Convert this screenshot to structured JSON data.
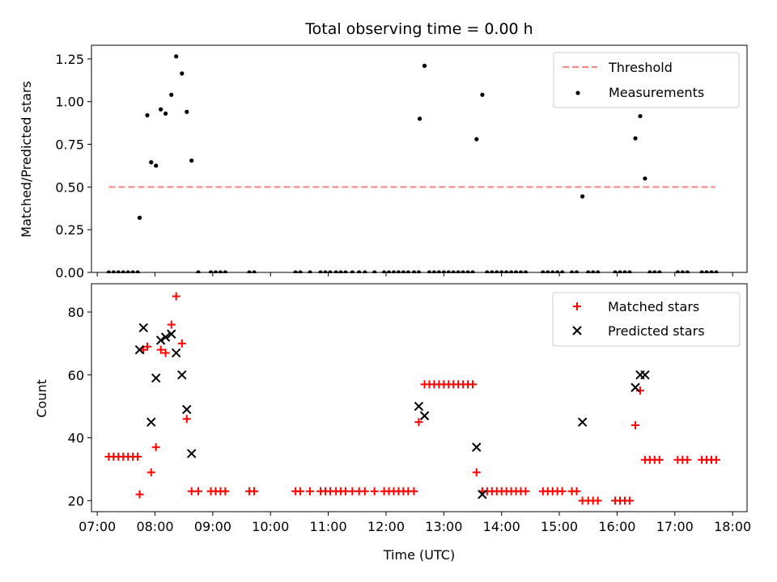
{
  "chart_data": [
    {
      "type": "scatter",
      "title": "Total observing time = 0.00 h",
      "xlabel": "",
      "ylabel": "Matched/Predicted stars",
      "xlim": [
        "06:54",
        "18:15"
      ],
      "ylim": [
        0,
        1.33
      ],
      "yticks": [
        "0.00",
        "0.25",
        "0.50",
        "0.75",
        "1.00",
        "1.25"
      ],
      "legend_position": "top-right",
      "threshold": {
        "name": "Threshold",
        "value": 0.5,
        "x_range": [
          "07:12",
          "17:42"
        ],
        "color": "#ff7f7f",
        "style": "dashed"
      },
      "series": [
        {
          "name": "Measurements",
          "color": "#000000",
          "marker": "dot",
          "points": [
            [
              "07:12",
              0
            ],
            [
              "07:17",
              0
            ],
            [
              "07:22",
              0
            ],
            [
              "07:27",
              0
            ],
            [
              "07:32",
              0
            ],
            [
              "07:37",
              0
            ],
            [
              "07:42",
              0
            ],
            [
              "07:44",
              0.32
            ],
            [
              "07:52",
              0.92
            ],
            [
              "07:56",
              0.645
            ],
            [
              "08:01",
              0.625
            ],
            [
              "08:06",
              0.955
            ],
            [
              "08:11",
              0.93
            ],
            [
              "08:17",
              1.04
            ],
            [
              "08:22",
              1.265
            ],
            [
              "08:28",
              1.165
            ],
            [
              "08:33",
              0.94
            ],
            [
              "08:38",
              0.655
            ],
            [
              "08:45",
              0
            ],
            [
              "08:58",
              0
            ],
            [
              "09:03",
              0
            ],
            [
              "09:08",
              0
            ],
            [
              "09:13",
              0
            ],
            [
              "09:38",
              0
            ],
            [
              "09:43",
              0
            ],
            [
              "10:26",
              0
            ],
            [
              "10:31",
              0
            ],
            [
              "10:41",
              0
            ],
            [
              "10:52",
              0
            ],
            [
              "10:57",
              0
            ],
            [
              "11:02",
              0
            ],
            [
              "11:08",
              0
            ],
            [
              "11:13",
              0
            ],
            [
              "11:18",
              0
            ],
            [
              "11:25",
              0
            ],
            [
              "11:32",
              0
            ],
            [
              "11:38",
              0
            ],
            [
              "11:48",
              0
            ],
            [
              "11:58",
              0
            ],
            [
              "12:03",
              0
            ],
            [
              "12:08",
              0
            ],
            [
              "12:13",
              0
            ],
            [
              "12:18",
              0
            ],
            [
              "12:23",
              0
            ],
            [
              "12:29",
              0
            ],
            [
              "12:34",
              0
            ],
            [
              "12:35",
              0.9
            ],
            [
              "12:40",
              1.21
            ],
            [
              "12:45",
              0
            ],
            [
              "12:50",
              0
            ],
            [
              "12:55",
              0
            ],
            [
              "13:00",
              0
            ],
            [
              "13:05",
              0
            ],
            [
              "13:10",
              0
            ],
            [
              "13:15",
              0
            ],
            [
              "13:20",
              0
            ],
            [
              "13:25",
              0
            ],
            [
              "13:30",
              0
            ],
            [
              "13:34",
              0.78
            ],
            [
              "13:40",
              1.04
            ],
            [
              "13:45",
              0
            ],
            [
              "13:50",
              0
            ],
            [
              "13:55",
              0
            ],
            [
              "14:00",
              0
            ],
            [
              "14:05",
              0
            ],
            [
              "14:10",
              0
            ],
            [
              "14:15",
              0
            ],
            [
              "14:20",
              0
            ],
            [
              "14:25",
              0
            ],
            [
              "14:43",
              0
            ],
            [
              "14:48",
              0
            ],
            [
              "14:53",
              0
            ],
            [
              "14:58",
              0
            ],
            [
              "15:03",
              0
            ],
            [
              "15:13",
              0
            ],
            [
              "15:18",
              0
            ],
            [
              "15:24",
              0.445
            ],
            [
              "15:30",
              0
            ],
            [
              "15:35",
              0
            ],
            [
              "15:40",
              0
            ],
            [
              "15:58",
              0
            ],
            [
              "16:03",
              0
            ],
            [
              "16:08",
              0
            ],
            [
              "16:13",
              0
            ],
            [
              "16:19",
              0.785
            ],
            [
              "16:24",
              0.915
            ],
            [
              "16:29",
              0.55
            ],
            [
              "16:34",
              0
            ],
            [
              "16:39",
              0
            ],
            [
              "16:44",
              0
            ],
            [
              "17:03",
              0
            ],
            [
              "17:08",
              0
            ],
            [
              "17:13",
              0
            ],
            [
              "17:28",
              0
            ],
            [
              "17:33",
              0
            ],
            [
              "17:38",
              0
            ],
            [
              "17:43",
              0
            ]
          ]
        }
      ]
    },
    {
      "type": "scatter",
      "title": "",
      "xlabel": "Time (UTC)",
      "ylabel": "Count",
      "xlim": [
        "06:54",
        "18:15"
      ],
      "ylim": [
        16.5,
        89
      ],
      "yticks": [
        "20",
        "40",
        "60",
        "80"
      ],
      "xticks": [
        "07:00",
        "08:00",
        "09:00",
        "10:00",
        "11:00",
        "12:00",
        "13:00",
        "14:00",
        "15:00",
        "16:00",
        "17:00",
        "18:00"
      ],
      "legend_position": "top-right",
      "series": [
        {
          "name": "Matched stars",
          "color": "#ff0000",
          "marker": "plus",
          "points": [
            [
              "07:12",
              34
            ],
            [
              "07:17",
              34
            ],
            [
              "07:22",
              34
            ],
            [
              "07:27",
              34
            ],
            [
              "07:32",
              34
            ],
            [
              "07:37",
              34
            ],
            [
              "07:42",
              34
            ],
            [
              "07:44",
              22
            ],
            [
              "07:48",
              68
            ],
            [
              "07:52",
              69
            ],
            [
              "07:56",
              29
            ],
            [
              "08:01",
              37
            ],
            [
              "08:06",
              68
            ],
            [
              "08:11",
              67
            ],
            [
              "08:17",
              76
            ],
            [
              "08:22",
              85
            ],
            [
              "08:28",
              70
            ],
            [
              "08:33",
              46
            ],
            [
              "08:38",
              23
            ],
            [
              "08:45",
              23
            ],
            [
              "08:58",
              23
            ],
            [
              "09:03",
              23
            ],
            [
              "09:08",
              23
            ],
            [
              "09:13",
              23
            ],
            [
              "09:38",
              23
            ],
            [
              "09:43",
              23
            ],
            [
              "10:26",
              23
            ],
            [
              "10:31",
              23
            ],
            [
              "10:41",
              23
            ],
            [
              "10:52",
              23
            ],
            [
              "10:57",
              23
            ],
            [
              "11:02",
              23
            ],
            [
              "11:08",
              23
            ],
            [
              "11:13",
              23
            ],
            [
              "11:18",
              23
            ],
            [
              "11:25",
              23
            ],
            [
              "11:32",
              23
            ],
            [
              "11:38",
              23
            ],
            [
              "11:48",
              23
            ],
            [
              "11:58",
              23
            ],
            [
              "12:03",
              23
            ],
            [
              "12:08",
              23
            ],
            [
              "12:13",
              23
            ],
            [
              "12:18",
              23
            ],
            [
              "12:23",
              23
            ],
            [
              "12:29",
              23
            ],
            [
              "12:34",
              45
            ],
            [
              "12:40",
              57
            ],
            [
              "12:45",
              57
            ],
            [
              "12:50",
              57
            ],
            [
              "12:55",
              57
            ],
            [
              "13:00",
              57
            ],
            [
              "13:05",
              57
            ],
            [
              "13:10",
              57
            ],
            [
              "13:15",
              57
            ],
            [
              "13:20",
              57
            ],
            [
              "13:25",
              57
            ],
            [
              "13:30",
              57
            ],
            [
              "13:34",
              29
            ],
            [
              "13:40",
              23
            ],
            [
              "13:45",
              23
            ],
            [
              "13:50",
              23
            ],
            [
              "13:55",
              23
            ],
            [
              "14:00",
              23
            ],
            [
              "14:05",
              23
            ],
            [
              "14:10",
              23
            ],
            [
              "14:15",
              23
            ],
            [
              "14:20",
              23
            ],
            [
              "14:25",
              23
            ],
            [
              "14:43",
              23
            ],
            [
              "14:48",
              23
            ],
            [
              "14:53",
              23
            ],
            [
              "14:58",
              23
            ],
            [
              "15:03",
              23
            ],
            [
              "15:13",
              23
            ],
            [
              "15:18",
              23
            ],
            [
              "15:24",
              20
            ],
            [
              "15:30",
              20
            ],
            [
              "15:35",
              20
            ],
            [
              "15:40",
              20
            ],
            [
              "15:58",
              20
            ],
            [
              "16:03",
              20
            ],
            [
              "16:08",
              20
            ],
            [
              "16:13",
              20
            ],
            [
              "16:19",
              44
            ],
            [
              "16:24",
              55
            ],
            [
              "16:29",
              33
            ],
            [
              "16:34",
              33
            ],
            [
              "16:39",
              33
            ],
            [
              "16:44",
              33
            ],
            [
              "17:03",
              33
            ],
            [
              "17:08",
              33
            ],
            [
              "17:13",
              33
            ],
            [
              "17:28",
              33
            ],
            [
              "17:33",
              33
            ],
            [
              "17:38",
              33
            ],
            [
              "17:43",
              33
            ]
          ]
        },
        {
          "name": "Predicted stars",
          "color": "#000000",
          "marker": "x",
          "points": [
            [
              "07:44",
              68
            ],
            [
              "07:48",
              75
            ],
            [
              "07:56",
              45
            ],
            [
              "08:01",
              59
            ],
            [
              "08:06",
              71
            ],
            [
              "08:11",
              72
            ],
            [
              "08:17",
              73
            ],
            [
              "08:22",
              67
            ],
            [
              "08:28",
              60
            ],
            [
              "08:33",
              49
            ],
            [
              "08:38",
              35
            ],
            [
              "12:34",
              50
            ],
            [
              "12:40",
              47
            ],
            [
              "13:34",
              37
            ],
            [
              "13:40",
              22
            ],
            [
              "15:24",
              45
            ],
            [
              "16:19",
              56
            ],
            [
              "16:24",
              60
            ],
            [
              "16:29",
              60
            ]
          ]
        }
      ]
    }
  ]
}
